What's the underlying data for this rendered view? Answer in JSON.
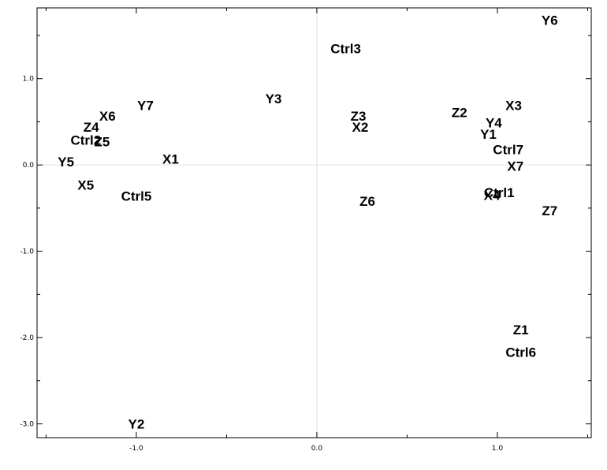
{
  "chart_data": {
    "type": "scatter",
    "title": "",
    "xlabel": "",
    "ylabel": "",
    "xlim": [
      -1.55,
      1.52
    ],
    "ylim": [
      -3.16,
      1.82
    ],
    "x_ticks": [
      -1.0,
      0.0,
      1.0
    ],
    "x_tick_labels": [
      "-1.0",
      "0.0",
      "1.0"
    ],
    "y_ticks": [
      1.0,
      0.0,
      -1.0,
      -2.0,
      -3.0
    ],
    "y_tick_labels": [
      "1.0",
      "0.0",
      "-1.0",
      "-2.0",
      "-3.0"
    ],
    "grid": "zero lines only",
    "points": [
      {
        "label": "Y6",
        "x": 1.29,
        "y": 1.68
      },
      {
        "label": "Ctrl3",
        "x": 0.16,
        "y": 1.35
      },
      {
        "label": "Y7",
        "x": -0.95,
        "y": 0.69
      },
      {
        "label": "Y3",
        "x": -0.24,
        "y": 0.77
      },
      {
        "label": "X6",
        "x": -1.16,
        "y": 0.57
      },
      {
        "label": "Z4",
        "x": -1.25,
        "y": 0.44
      },
      {
        "label": "Ctrl2",
        "x": -1.28,
        "y": 0.29
      },
      {
        "label": "Z5",
        "x": -1.19,
        "y": 0.27
      },
      {
        "label": "Y5",
        "x": -1.39,
        "y": 0.04
      },
      {
        "label": "X1",
        "x": -0.81,
        "y": 0.07
      },
      {
        "label": "X5",
        "x": -1.28,
        "y": -0.23
      },
      {
        "label": "Ctrl5",
        "x": -1.0,
        "y": -0.36
      },
      {
        "label": "Z3",
        "x": 0.23,
        "y": 0.57
      },
      {
        "label": "X2",
        "x": 0.24,
        "y": 0.44
      },
      {
        "label": "Z6",
        "x": 0.28,
        "y": -0.42
      },
      {
        "label": "Z2",
        "x": 0.79,
        "y": 0.61
      },
      {
        "label": "X3",
        "x": 1.09,
        "y": 0.69
      },
      {
        "label": "Y4",
        "x": 0.98,
        "y": 0.49
      },
      {
        "label": "Y1",
        "x": 0.95,
        "y": 0.36
      },
      {
        "label": "Ctrl7",
        "x": 1.06,
        "y": 0.18
      },
      {
        "label": "X7",
        "x": 1.1,
        "y": -0.01
      },
      {
        "label": "Ctrl1",
        "x": 1.01,
        "y": -0.32
      },
      {
        "label": "X4",
        "x": 0.97,
        "y": -0.35
      },
      {
        "label": "Z7",
        "x": 1.29,
        "y": -0.53
      },
      {
        "label": "Z1",
        "x": 1.13,
        "y": -1.91
      },
      {
        "label": "Ctrl6",
        "x": 1.13,
        "y": -2.17
      },
      {
        "label": "Y2",
        "x": -1.0,
        "y": -3.0
      }
    ]
  }
}
